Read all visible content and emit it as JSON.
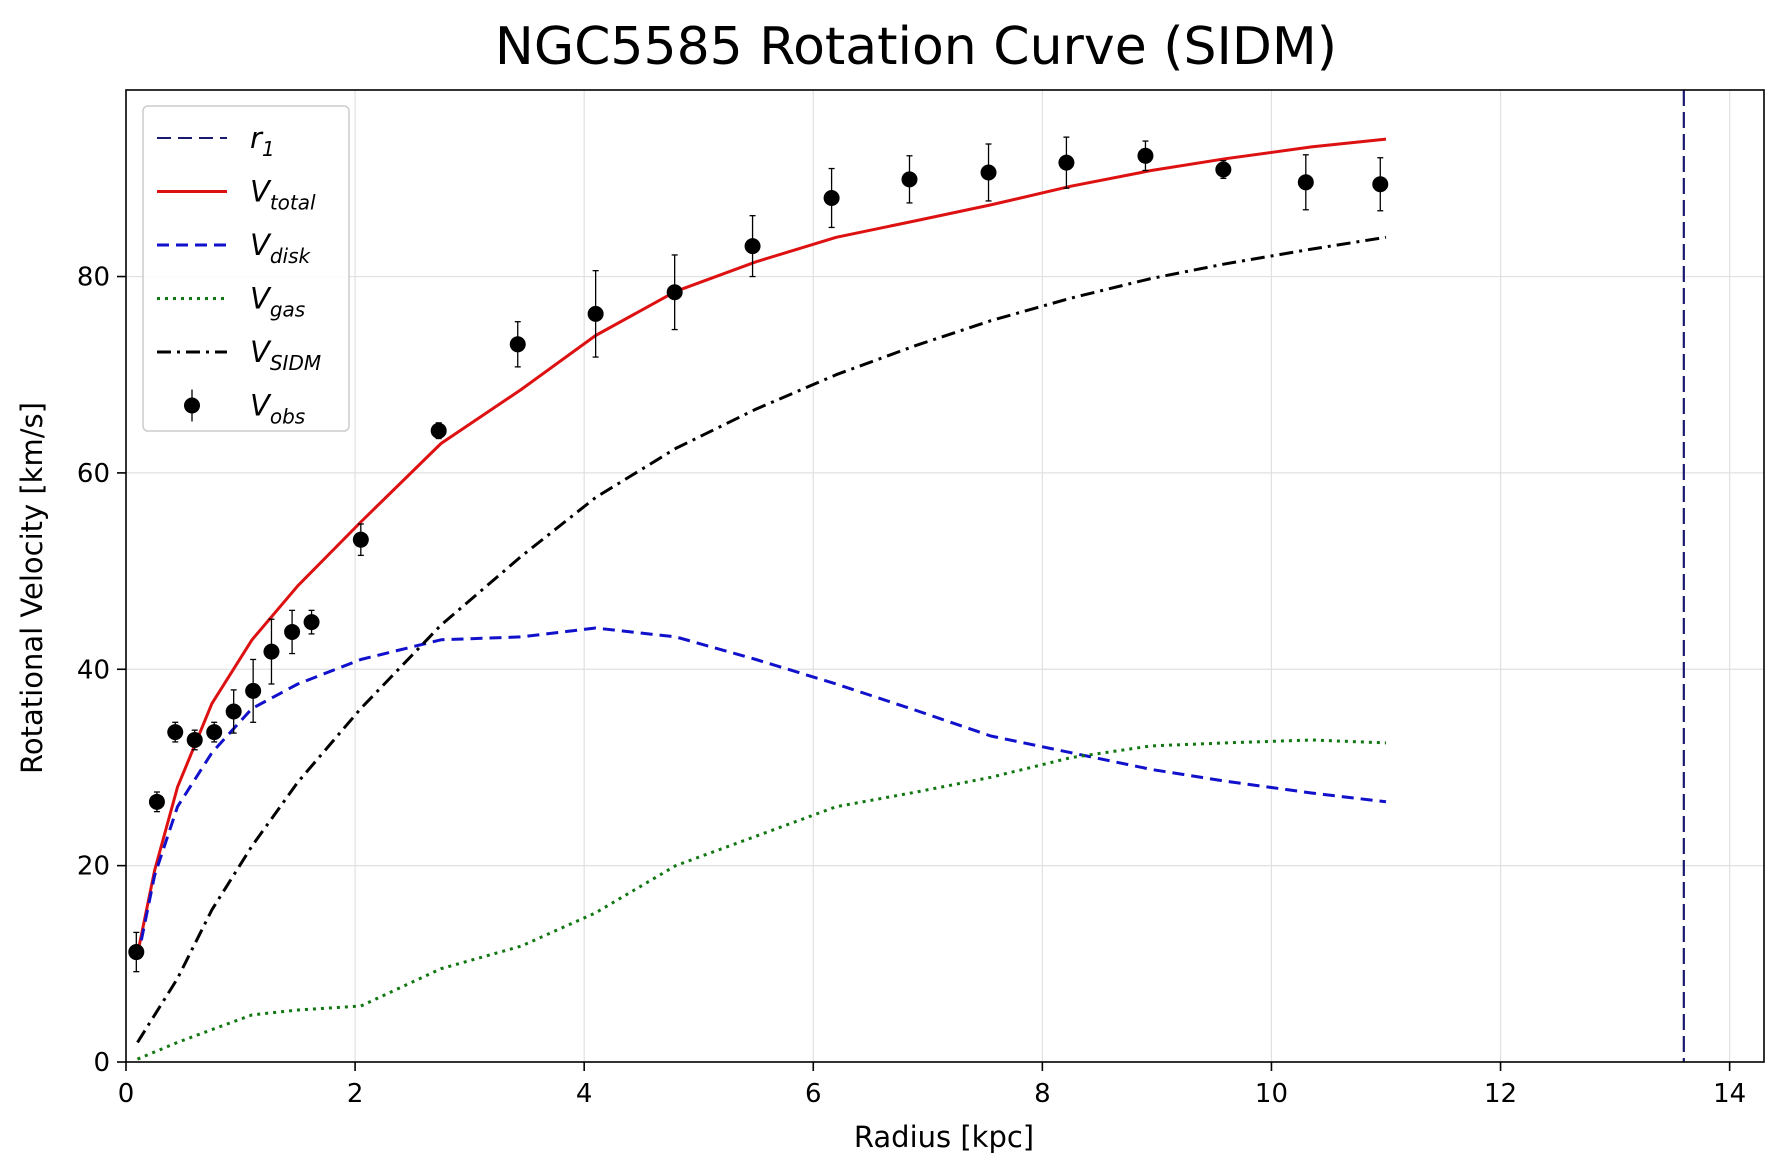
{
  "chart_data": {
    "type": "line",
    "title": "NGC5585 Rotation Curve (SIDM)",
    "xlabel": "Radius [kpc]",
    "ylabel": "Rotational Velocity [km/s]",
    "xlim": [
      0,
      14.3
    ],
    "ylim": [
      0,
      99
    ],
    "grid": true,
    "legend_position": "top-left",
    "x_ticks": [
      0,
      2,
      4,
      6,
      8,
      10,
      12,
      14
    ],
    "y_ticks": [
      0,
      20,
      40,
      60,
      80
    ],
    "vline": {
      "name": "r",
      "sub": "1",
      "x": 13.6,
      "color": "#191970",
      "style": "dashed"
    },
    "series": [
      {
        "name": "V",
        "sub": "total",
        "color": "#dd1111",
        "style": "solid",
        "x": [
          0.1,
          0.25,
          0.45,
          0.75,
          1.1,
          1.5,
          2.05,
          2.75,
          3.45,
          4.1,
          4.8,
          5.5,
          6.2,
          6.9,
          7.55,
          8.25,
          8.95,
          9.6,
          10.35,
          11.0
        ],
        "y": [
          11.0,
          19.5,
          28.0,
          36.5,
          43.0,
          48.5,
          55.0,
          63.0,
          68.5,
          74.0,
          78.5,
          81.5,
          84.0,
          85.7,
          87.3,
          89.2,
          90.8,
          92.0,
          93.2,
          94.0
        ]
      },
      {
        "name": "V",
        "sub": "disk",
        "color": "#1111cc",
        "style": "dashed",
        "x": [
          0.1,
          0.25,
          0.45,
          0.75,
          1.1,
          1.5,
          2.05,
          2.75,
          3.45,
          4.1,
          4.8,
          5.5,
          6.2,
          6.9,
          7.55,
          8.25,
          8.95,
          9.6,
          10.35,
          11.0
        ],
        "y": [
          10.5,
          19.0,
          26.0,
          31.5,
          36.0,
          38.5,
          41.0,
          43.0,
          43.3,
          44.2,
          43.3,
          41.0,
          38.5,
          35.8,
          33.2,
          31.5,
          29.8,
          28.6,
          27.4,
          26.5
        ]
      },
      {
        "name": "V",
        "sub": "gas",
        "color": "#117711",
        "style": "dotted",
        "x": [
          0.1,
          0.45,
          0.75,
          1.1,
          1.5,
          2.05,
          2.75,
          3.45,
          4.1,
          4.8,
          5.5,
          6.2,
          6.9,
          7.55,
          8.25,
          8.95,
          9.6,
          10.35,
          11.0
        ],
        "y": [
          0.3,
          2.0,
          3.3,
          4.8,
          5.3,
          5.7,
          9.5,
          11.8,
          15.2,
          20.0,
          23.0,
          26.0,
          27.5,
          29.0,
          31.0,
          32.2,
          32.5,
          32.8,
          32.5
        ]
      },
      {
        "name": "V",
        "sub": "SIDM",
        "color": "#000000",
        "style": "dashdot",
        "x": [
          0.1,
          0.45,
          0.75,
          1.1,
          1.5,
          2.05,
          2.75,
          3.45,
          4.1,
          4.8,
          5.5,
          6.2,
          6.9,
          7.55,
          8.25,
          8.95,
          9.6,
          10.35,
          11.0
        ],
        "y": [
          2.0,
          8.5,
          15.5,
          22.0,
          28.5,
          36.0,
          44.5,
          51.5,
          57.5,
          62.5,
          66.5,
          70.0,
          73.0,
          75.5,
          77.8,
          79.8,
          81.3,
          82.8,
          84.0
        ]
      }
    ],
    "observed": {
      "name": "V",
      "sub": "obs",
      "color": "#000000",
      "points": [
        {
          "x": 0.09,
          "y": 11.2,
          "err": 2.0
        },
        {
          "x": 0.27,
          "y": 26.5,
          "err": 1.0
        },
        {
          "x": 0.43,
          "y": 33.6,
          "err": 1.0
        },
        {
          "x": 0.6,
          "y": 32.8,
          "err": 1.0
        },
        {
          "x": 0.77,
          "y": 33.6,
          "err": 1.0
        },
        {
          "x": 0.94,
          "y": 35.7,
          "err": 2.2
        },
        {
          "x": 1.11,
          "y": 37.8,
          "err": 3.2
        },
        {
          "x": 1.27,
          "y": 41.8,
          "err": 3.3
        },
        {
          "x": 1.45,
          "y": 43.8,
          "err": 2.2
        },
        {
          "x": 1.62,
          "y": 44.8,
          "err": 1.2
        },
        {
          "x": 2.05,
          "y": 53.2,
          "err": 1.6
        },
        {
          "x": 2.73,
          "y": 64.3,
          "err": 0.8
        },
        {
          "x": 3.42,
          "y": 73.1,
          "err": 2.3
        },
        {
          "x": 4.1,
          "y": 76.2,
          "err": 4.4
        },
        {
          "x": 4.79,
          "y": 78.4,
          "err": 3.8
        },
        {
          "x": 5.47,
          "y": 83.1,
          "err": 3.1
        },
        {
          "x": 6.16,
          "y": 88.0,
          "err": 3.0
        },
        {
          "x": 6.84,
          "y": 89.9,
          "err": 2.4
        },
        {
          "x": 7.53,
          "y": 90.6,
          "err": 2.9
        },
        {
          "x": 8.21,
          "y": 91.6,
          "err": 2.6
        },
        {
          "x": 8.9,
          "y": 92.3,
          "err": 1.5
        },
        {
          "x": 9.58,
          "y": 90.9,
          "err": 0.9
        },
        {
          "x": 10.3,
          "y": 89.6,
          "err": 2.8
        },
        {
          "x": 10.95,
          "y": 89.4,
          "err": 2.7
        }
      ]
    }
  }
}
